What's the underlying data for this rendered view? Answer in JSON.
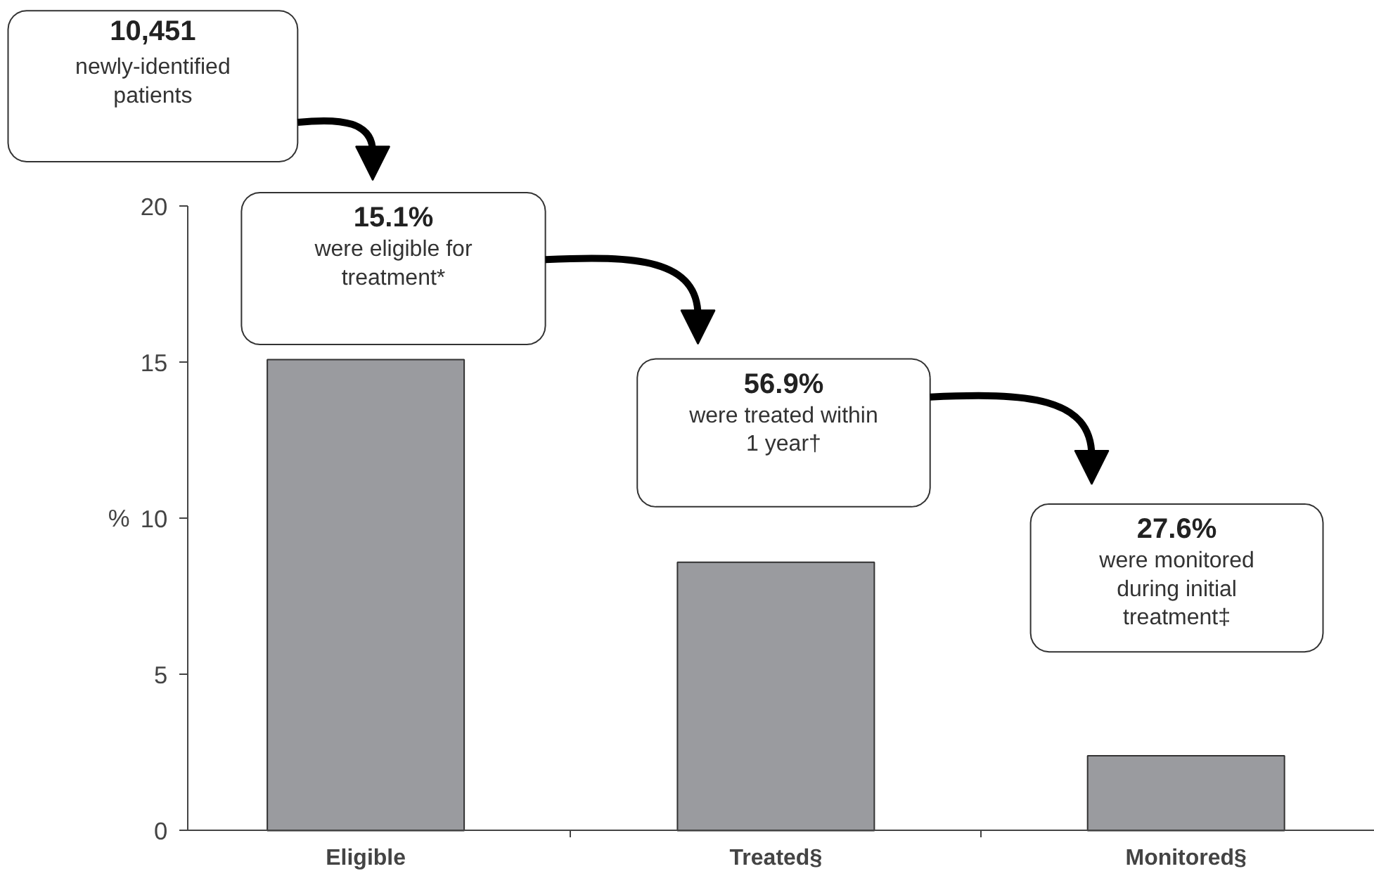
{
  "chart_data": {
    "type": "bar",
    "categories": [
      "Eligible",
      "Treated§",
      "Monitored§"
    ],
    "values": [
      15.1,
      8.6,
      2.4
    ],
    "color": "#9a9b9f",
    "ylabel": "%",
    "ylim": [
      0,
      20
    ],
    "yticks": [
      0,
      5,
      10,
      15,
      20
    ],
    "grid": false,
    "annotations": [
      "10,451\nnewly-identified\npatients",
      "15.1%\nwere eligible for\ntreatment*",
      "56.9%\nwere treated within\n1 year†",
      "27.6%\nwere monitored\nduring initial\ntreatment‡"
    ]
  }
}
